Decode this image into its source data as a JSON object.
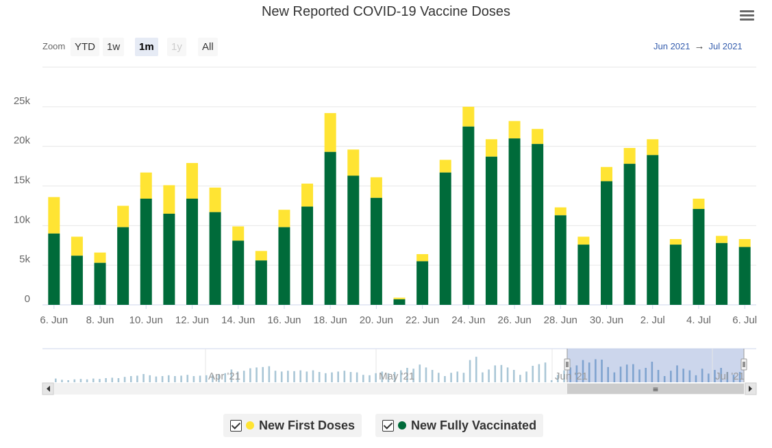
{
  "title": "New Reported COVID-19 Vaccine Doses",
  "menu_icon": "hamburger-menu-icon",
  "zoom": {
    "label": "Zoom",
    "buttons": [
      {
        "label": "YTD",
        "state": "normal"
      },
      {
        "label": "1w",
        "state": "normal"
      },
      {
        "label": "1m",
        "state": "active"
      },
      {
        "label": "1y",
        "state": "disabled"
      },
      {
        "label": "All",
        "state": "normal"
      }
    ]
  },
  "range": {
    "from": "Jun 2021",
    "arrow": "→",
    "to": "Jul 2021"
  },
  "colors": {
    "first": "#ffe433",
    "full": "#006b3a",
    "navigator_series": "#a9c6d6",
    "navigator_mask": "#c7d2ea"
  },
  "legend": [
    {
      "label": "New First Doses",
      "color": "#ffe433",
      "checked": true
    },
    {
      "label": "New Fully Vaccinated",
      "color": "#006b3a",
      "checked": true
    }
  ],
  "chart_data": {
    "type": "bar",
    "stacked": true,
    "title": "New Reported COVID-19 Vaccine Doses",
    "categories": [
      "6. Jun",
      "7. Jun",
      "8. Jun",
      "9. Jun",
      "10. Jun",
      "11. Jun",
      "12. Jun",
      "13. Jun",
      "14. Jun",
      "15. Jun",
      "16. Jun",
      "17. Jun",
      "18. Jun",
      "19. Jun",
      "20. Jun",
      "21. Jun",
      "22. Jun",
      "23. Jun",
      "24. Jun",
      "25. Jun",
      "26. Jun",
      "27. Jun",
      "28. Jun",
      "29. Jun",
      "30. Jun",
      "1. Jul",
      "2. Jul",
      "3. Jul",
      "4. Jul",
      "5. Jul",
      "6. Jul"
    ],
    "x_tick_labels": [
      "6. Jun",
      "8. Jun",
      "10. Jun",
      "12. Jun",
      "14. Jun",
      "16. Jun",
      "18. Jun",
      "20. Jun",
      "22. Jun",
      "24. Jun",
      "26. Jun",
      "28. Jun",
      "30. Jun",
      "2. Jul",
      "4. Jul",
      "6. Jul"
    ],
    "y_ticks": [
      "0",
      "5k",
      "10k",
      "15k",
      "20k",
      "25k"
    ],
    "ylim": [
      0,
      30000
    ],
    "series": [
      {
        "name": "New Fully Vaccinated",
        "values": [
          9000,
          6200,
          5300,
          9800,
          13400,
          11500,
          13400,
          11700,
          8100,
          5600,
          9800,
          12400,
          19300,
          16300,
          13500,
          700,
          5500,
          16700,
          22500,
          18700,
          21000,
          20300,
          11300,
          7600,
          15600,
          17800,
          18900,
          7600,
          12100,
          7800,
          7300
        ]
      },
      {
        "name": "New First Doses",
        "values": [
          4600,
          2400,
          1300,
          2700,
          3300,
          3600,
          4500,
          3100,
          1800,
          1200,
          2200,
          2900,
          4900,
          3300,
          2600,
          200,
          900,
          1600,
          2500,
          2200,
          2200,
          1900,
          1000,
          1000,
          1800,
          2000,
          2000,
          700,
          1300,
          900,
          1000
        ]
      }
    ],
    "xlabel": "",
    "ylabel": "",
    "grid": true
  },
  "navigator": {
    "labels": [
      "Apr '21",
      "May '21",
      "Jun '21",
      "Jul '21"
    ],
    "values": [
      0.9,
      0.6,
      0.5,
      0.7,
      0.8,
      0.7,
      0.9,
      0.8,
      1.0,
      1.1,
      1.0,
      1.3,
      1.5,
      1.6,
      2.0,
      1.7,
      1.4,
      1.5,
      1.7,
      1.5,
      1.6,
      1.8,
      1.5,
      1.6,
      1.7,
      1.8,
      2.0,
      2.2,
      3.1,
      2.6,
      2.8,
      3.4,
      3.6,
      3.7,
      3.9,
      2.8,
      2.6,
      2.8,
      2.7,
      2.9,
      2.6,
      2.9,
      2.5,
      2.2,
      2.4,
      2.6,
      2.8,
      2.5,
      2.4,
      1.8,
      1.7,
      2.2,
      2.6,
      2.2,
      2.5,
      2.9,
      3.5,
      3.3,
      4.3,
      3.6,
      3.0,
      2.3,
      1.5,
      2.3,
      2.6,
      2.3,
      5.4,
      6.2,
      2.4,
      3.1,
      4.1,
      4.2,
      3.6,
      3.0,
      1.8,
      2.6,
      4.0,
      4.4,
      4.8,
      0.5,
      1.8,
      2.9,
      3.6,
      4.1,
      5.4,
      4.8,
      5.6,
      5.5,
      3.7,
      2.4,
      3.8,
      4.3,
      4.4,
      3.1,
      3.5,
      5.0,
      3.0,
      1.5,
      2.8,
      4.1,
      3.3,
      2.9,
      1.7,
      3.3,
      2.1,
      3.0,
      3.5,
      2.5,
      1.8,
      2.5
    ],
    "scroll_grip": "≡"
  }
}
